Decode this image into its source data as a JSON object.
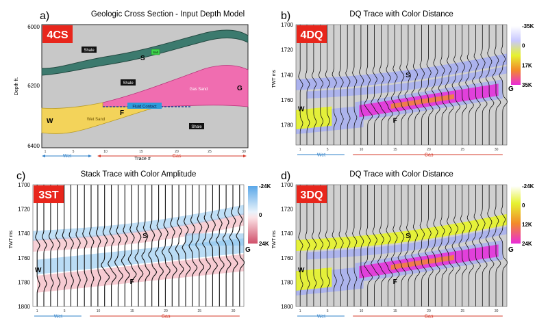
{
  "figure": {
    "panels": [
      {
        "id": "a",
        "letter": "a)",
        "title": "Geologic Cross Section - Input Depth Model",
        "tag": "4CS",
        "ylabel": "Depth ft.",
        "yticks": [
          "6000",
          "6200",
          "6400"
        ],
        "xlabel": "Trace #",
        "xticks": [
          "1",
          "5",
          "10",
          "15",
          "20",
          "25",
          "30"
        ],
        "labels": {
          "shale": "Shale",
          "salt": "Salt",
          "gas_sand": "Gas Sand",
          "wet_sand": "Wet Sand",
          "fluid_contact": "Fluid Contact",
          "S": "S",
          "F": "F",
          "G": "G",
          "W": "W"
        }
      },
      {
        "id": "b",
        "letter": "b)",
        "title": "DQ Trace with Color Distance",
        "tag": "4DQ",
        "ylabel": "TWT ms",
        "yticks": [
          "1700",
          "1720",
          "1740",
          "1760",
          "1780"
        ],
        "xticks": [
          "1",
          "5",
          "10",
          "15",
          "20",
          "25",
          "30"
        ],
        "colorbar": [
          "-35K",
          "0",
          "17K",
          "35K"
        ],
        "markers": {
          "S": "S",
          "F": "F",
          "G": "G",
          "W": "W"
        }
      },
      {
        "id": "c",
        "letter": "c)",
        "title": "Stack Trace with Color Amplitude",
        "tag": "3ST",
        "ylabel": "TWT ms",
        "yticks": [
          "1700",
          "1720",
          "1740",
          "1760",
          "1780",
          "1800"
        ],
        "xticks": [
          "1",
          "5",
          "10",
          "15",
          "20",
          "25",
          "30"
        ],
        "colorbar": [
          "-24K",
          "0",
          "24K"
        ],
        "markers": {
          "S": "S",
          "F": "F",
          "G": "G",
          "W": "W"
        }
      },
      {
        "id": "d",
        "letter": "d)",
        "title": "DQ Trace with Color Distance",
        "tag": "3DQ",
        "ylabel": "TWT ms",
        "yticks": [
          "1700",
          "1720",
          "1740",
          "1760",
          "1780",
          "1800"
        ],
        "xticks": [
          "1",
          "5",
          "10",
          "15",
          "20",
          "25",
          "30"
        ],
        "colorbar": [
          "-24K",
          "0",
          "12K",
          "24K"
        ],
        "markers": {
          "S": "S",
          "F": "F",
          "G": "G",
          "W": "W"
        }
      }
    ],
    "zones": {
      "wet": "Wet",
      "gas": "Gas"
    },
    "colors": {
      "tag_red": "#e8261c",
      "shale_grey": "#c8c8c8",
      "salt_green": "#3c7a6e",
      "gas_pink": "#f06db0",
      "wet_yellow": "#f3d35a",
      "fluid_blue": "#2d9cdb",
      "arrow_blue": "#2f80c8",
      "arrow_red": "#d63a2a",
      "lavender": "#a9b0ee",
      "dq_yellow": "#e6f230",
      "dq_magenta": "#ea2bd8",
      "dq_orange": "#f28a2a",
      "amp_blue": "#8cc4ee",
      "amp_pink": "#f0a9b4"
    }
  }
}
